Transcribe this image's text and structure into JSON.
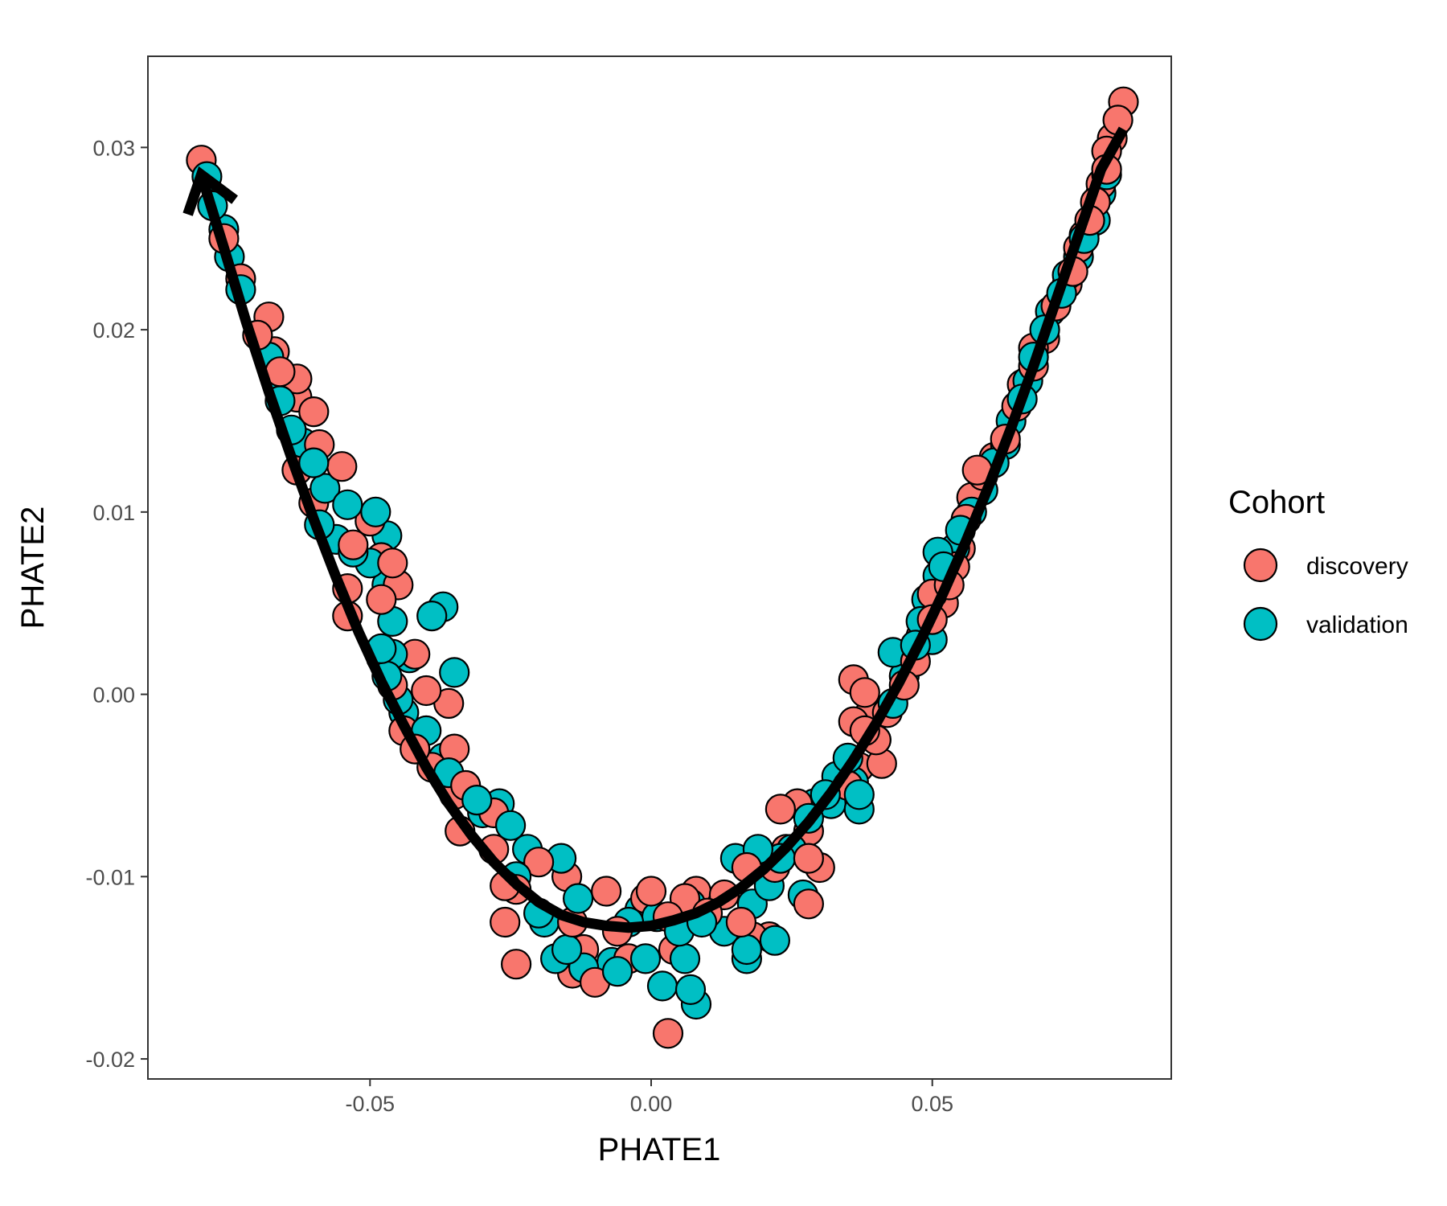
{
  "chart_data": {
    "type": "scatter",
    "xlabel": "PHATE1",
    "ylabel": "PHATE2",
    "xlim": [
      -0.0895,
      0.0925
    ],
    "ylim": [
      -0.0211,
      0.035
    ],
    "x_ticks": [
      -0.05,
      0.0,
      0.05
    ],
    "x_tick_labels": [
      "-0.05",
      "0.00",
      "0.05"
    ],
    "y_ticks": [
      -0.02,
      -0.01,
      0.0,
      0.01,
      0.02,
      0.03
    ],
    "y_tick_labels": [
      "-0.02",
      "-0.01",
      "0.00",
      "0.01",
      "0.02",
      "0.03"
    ],
    "grid": false,
    "legend": {
      "title": "Cohort",
      "placement": "right",
      "entries": [
        {
          "label": "discovery",
          "color": "#F8766D"
        },
        {
          "label": "validation",
          "color": "#00BFC4"
        }
      ]
    },
    "series": [
      {
        "name": "discovery",
        "color": "#F8766D",
        "points": [
          [
            -0.08,
            0.0293
          ],
          [
            -0.076,
            0.025
          ],
          [
            -0.073,
            0.0228
          ],
          [
            -0.07,
            0.0197
          ],
          [
            -0.068,
            0.0207
          ],
          [
            -0.067,
            0.0188
          ],
          [
            -0.066,
            0.0177
          ],
          [
            -0.063,
            0.0173
          ],
          [
            -0.063,
            0.0163
          ],
          [
            -0.06,
            0.0155
          ],
          [
            -0.059,
            0.0137
          ],
          [
            -0.063,
            0.0123
          ],
          [
            -0.055,
            0.0125
          ],
          [
            -0.06,
            0.0105
          ],
          [
            -0.053,
            0.0082
          ],
          [
            -0.05,
            0.0095
          ],
          [
            -0.048,
            0.0075
          ],
          [
            -0.046,
            0.0072
          ],
          [
            -0.045,
            0.006
          ],
          [
            -0.054,
            0.0058
          ],
          [
            -0.048,
            0.0052
          ],
          [
            -0.054,
            0.0043
          ],
          [
            -0.048,
            0.002
          ],
          [
            -0.046,
            0.0005
          ],
          [
            -0.042,
            0.0022
          ],
          [
            -0.04,
            0.0002
          ],
          [
            -0.036,
            -0.0005
          ],
          [
            -0.044,
            -0.002
          ],
          [
            -0.042,
            -0.003
          ],
          [
            -0.039,
            -0.004
          ],
          [
            -0.035,
            -0.003
          ],
          [
            -0.033,
            -0.005
          ],
          [
            -0.035,
            -0.0055
          ],
          [
            -0.034,
            -0.0075
          ],
          [
            -0.028,
            -0.0065
          ],
          [
            -0.028,
            -0.0085
          ],
          [
            -0.026,
            -0.0105
          ],
          [
            -0.024,
            -0.0107
          ],
          [
            -0.026,
            -0.0125
          ],
          [
            -0.024,
            -0.0148
          ],
          [
            -0.02,
            -0.0092
          ],
          [
            -0.015,
            -0.01
          ],
          [
            -0.014,
            -0.0125
          ],
          [
            -0.012,
            -0.014
          ],
          [
            -0.014,
            -0.0153
          ],
          [
            -0.01,
            -0.0158
          ],
          [
            -0.008,
            -0.0108
          ],
          [
            -0.006,
            -0.013
          ],
          [
            -0.004,
            -0.0145
          ],
          [
            -0.001,
            -0.0112
          ],
          [
            0.0,
            -0.0108
          ],
          [
            0.003,
            -0.0122
          ],
          [
            0.004,
            -0.014
          ],
          [
            0.003,
            -0.0186
          ],
          [
            0.006,
            -0.0112
          ],
          [
            0.008,
            -0.0108
          ],
          [
            0.01,
            -0.012
          ],
          [
            0.013,
            -0.011
          ],
          [
            0.016,
            -0.0125
          ],
          [
            0.018,
            -0.0133
          ],
          [
            0.021,
            -0.0133
          ],
          [
            0.017,
            -0.0095
          ],
          [
            0.022,
            -0.0095
          ],
          [
            0.024,
            -0.0085
          ],
          [
            0.023,
            -0.0063
          ],
          [
            0.026,
            -0.006
          ],
          [
            0.028,
            -0.0075
          ],
          [
            0.028,
            -0.009
          ],
          [
            0.03,
            -0.0095
          ],
          [
            0.028,
            -0.0115
          ],
          [
            0.035,
            -0.005
          ],
          [
            0.037,
            -0.004
          ],
          [
            0.038,
            -0.002
          ],
          [
            0.036,
            -0.0015
          ],
          [
            0.039,
            -0.001
          ],
          [
            0.04,
            -0.0025
          ],
          [
            0.042,
            -0.001
          ],
          [
            0.036,
            0.0008
          ],
          [
            0.038,
            0.0001
          ],
          [
            0.041,
            -0.0038
          ],
          [
            0.045,
            0.0005
          ],
          [
            0.047,
            0.0018
          ],
          [
            0.048,
            0.0032
          ],
          [
            0.05,
            0.0041
          ],
          [
            0.05,
            0.0055
          ],
          [
            0.052,
            0.005
          ],
          [
            0.053,
            0.006
          ],
          [
            0.054,
            0.007
          ],
          [
            0.055,
            0.008
          ],
          [
            0.056,
            0.0096
          ],
          [
            0.057,
            0.0108
          ],
          [
            0.058,
            0.0123
          ],
          [
            0.059,
            0.012
          ],
          [
            0.061,
            0.013
          ],
          [
            0.063,
            0.014
          ],
          [
            0.065,
            0.0158
          ],
          [
            0.066,
            0.017
          ],
          [
            0.068,
            0.018
          ],
          [
            0.068,
            0.019
          ],
          [
            0.07,
            0.0195
          ],
          [
            0.072,
            0.0213
          ],
          [
            0.074,
            0.0225
          ],
          [
            0.075,
            0.0232
          ],
          [
            0.076,
            0.0245
          ],
          [
            0.077,
            0.0252
          ],
          [
            0.078,
            0.026
          ],
          [
            0.079,
            0.027
          ],
          [
            0.08,
            0.028
          ],
          [
            0.081,
            0.0288
          ],
          [
            0.081,
            0.0298
          ],
          [
            0.082,
            0.0305
          ],
          [
            0.083,
            0.0315
          ],
          [
            0.084,
            0.0325
          ]
        ]
      },
      {
        "name": "validation",
        "color": "#00BFC4",
        "points": [
          [
            -0.079,
            0.0284
          ],
          [
            -0.078,
            0.0268
          ],
          [
            -0.076,
            0.0255
          ],
          [
            -0.075,
            0.024
          ],
          [
            -0.073,
            0.0222
          ],
          [
            -0.068,
            0.0185
          ],
          [
            -0.067,
            0.0175
          ],
          [
            -0.066,
            0.0161
          ],
          [
            -0.064,
            0.0145
          ],
          [
            -0.062,
            0.0138
          ],
          [
            -0.06,
            0.0127
          ],
          [
            -0.058,
            0.0113
          ],
          [
            -0.054,
            0.0104
          ],
          [
            -0.059,
            0.0093
          ],
          [
            -0.056,
            0.0085
          ],
          [
            -0.053,
            0.0078
          ],
          [
            -0.05,
            0.0072
          ],
          [
            -0.047,
            0.0087
          ],
          [
            -0.049,
            0.01
          ],
          [
            -0.047,
            0.006
          ],
          [
            -0.046,
            0.004
          ],
          [
            -0.039,
            0.0043
          ],
          [
            -0.037,
            0.0048
          ],
          [
            -0.048,
            0.0025
          ],
          [
            -0.046,
            0.0022
          ],
          [
            -0.043,
            0.002
          ],
          [
            -0.047,
            0.001
          ],
          [
            -0.045,
            -0.0003
          ],
          [
            -0.044,
            -0.001
          ],
          [
            -0.035,
            0.0012
          ],
          [
            -0.04,
            -0.002
          ],
          [
            -0.037,
            -0.0035
          ],
          [
            -0.036,
            -0.0043
          ],
          [
            -0.033,
            -0.005
          ],
          [
            -0.031,
            -0.0058
          ],
          [
            -0.03,
            -0.0065
          ],
          [
            -0.027,
            -0.006
          ],
          [
            -0.025,
            -0.0072
          ],
          [
            -0.024,
            -0.01
          ],
          [
            -0.022,
            -0.0085
          ],
          [
            -0.02,
            -0.012
          ],
          [
            -0.019,
            -0.0125
          ],
          [
            -0.017,
            -0.0145
          ],
          [
            -0.015,
            -0.014
          ],
          [
            -0.016,
            -0.009
          ],
          [
            -0.013,
            -0.0112
          ],
          [
            -0.012,
            -0.015
          ],
          [
            -0.007,
            -0.0147
          ],
          [
            -0.006,
            -0.0152
          ],
          [
            -0.004,
            -0.0125
          ],
          [
            -0.002,
            -0.0118
          ],
          [
            -0.001,
            -0.0145
          ],
          [
            0.001,
            -0.0122
          ],
          [
            0.002,
            -0.016
          ],
          [
            0.005,
            -0.013
          ],
          [
            0.006,
            -0.0145
          ],
          [
            0.007,
            -0.0162
          ],
          [
            0.008,
            -0.017
          ],
          [
            0.007,
            -0.0115
          ],
          [
            0.009,
            -0.0125
          ],
          [
            0.013,
            -0.013
          ],
          [
            0.015,
            -0.009
          ],
          [
            0.017,
            -0.014
          ],
          [
            0.017,
            -0.0145
          ],
          [
            0.018,
            -0.0115
          ],
          [
            0.019,
            -0.0085
          ],
          [
            0.021,
            -0.0105
          ],
          [
            0.022,
            -0.0135
          ],
          [
            0.023,
            -0.009
          ],
          [
            0.025,
            -0.0085
          ],
          [
            0.027,
            -0.011
          ],
          [
            0.028,
            -0.0068
          ],
          [
            0.029,
            -0.006
          ],
          [
            0.031,
            -0.0055
          ],
          [
            0.032,
            -0.006
          ],
          [
            0.033,
            -0.0045
          ],
          [
            0.035,
            -0.0035
          ],
          [
            0.036,
            -0.0048
          ],
          [
            0.037,
            -0.0055
          ],
          [
            0.037,
            -0.0063
          ],
          [
            0.04,
            -0.0025
          ],
          [
            0.043,
            -0.0005
          ],
          [
            0.043,
            0.0023
          ],
          [
            0.045,
            0.001
          ],
          [
            0.047,
            0.0027
          ],
          [
            0.048,
            0.004
          ],
          [
            0.049,
            0.0052
          ],
          [
            0.05,
            0.003
          ],
          [
            0.051,
            0.0065
          ],
          [
            0.052,
            0.007
          ],
          [
            0.051,
            0.0078
          ],
          [
            0.054,
            0.008
          ],
          [
            0.055,
            0.009
          ],
          [
            0.057,
            0.01
          ],
          [
            0.059,
            0.0112
          ],
          [
            0.061,
            0.0127
          ],
          [
            0.063,
            0.0137
          ],
          [
            0.064,
            0.015
          ],
          [
            0.066,
            0.0162
          ],
          [
            0.067,
            0.0172
          ],
          [
            0.068,
            0.0185
          ],
          [
            0.07,
            0.02
          ],
          [
            0.071,
            0.021
          ],
          [
            0.073,
            0.022
          ],
          [
            0.074,
            0.023
          ],
          [
            0.076,
            0.024
          ],
          [
            0.077,
            0.025
          ],
          [
            0.079,
            0.026
          ],
          [
            0.08,
            0.0275
          ],
          [
            0.081,
            0.0285
          ]
        ]
      }
    ],
    "trajectory": {
      "points": [
        [
          -0.08,
          0.0285
        ],
        [
          -0.076,
          0.0245
        ],
        [
          -0.072,
          0.0204
        ],
        [
          -0.068,
          0.0166
        ],
        [
          -0.064,
          0.013
        ],
        [
          -0.06,
          0.0096
        ],
        [
          -0.056,
          0.0064
        ],
        [
          -0.052,
          0.0034
        ],
        [
          -0.048,
          0.0007
        ],
        [
          -0.044,
          -0.0017
        ],
        [
          -0.04,
          -0.004
        ],
        [
          -0.036,
          -0.006
        ],
        [
          -0.032,
          -0.0077
        ],
        [
          -0.028,
          -0.0092
        ],
        [
          -0.024,
          -0.0104
        ],
        [
          -0.02,
          -0.0114
        ],
        [
          -0.016,
          -0.0121
        ],
        [
          -0.012,
          -0.0125
        ],
        [
          -0.008,
          -0.0127
        ],
        [
          -0.004,
          -0.0128
        ],
        [
          0.0,
          -0.0127
        ],
        [
          0.004,
          -0.0124
        ],
        [
          0.008,
          -0.012
        ],
        [
          0.012,
          -0.0114
        ],
        [
          0.016,
          -0.0106
        ],
        [
          0.02,
          -0.0096
        ],
        [
          0.024,
          -0.0084
        ],
        [
          0.028,
          -0.007
        ],
        [
          0.032,
          -0.0054
        ],
        [
          0.036,
          -0.0036
        ],
        [
          0.04,
          -0.0016
        ],
        [
          0.044,
          0.0006
        ],
        [
          0.048,
          0.003
        ],
        [
          0.052,
          0.0056
        ],
        [
          0.056,
          0.0084
        ],
        [
          0.06,
          0.0114
        ],
        [
          0.064,
          0.0146
        ],
        [
          0.068,
          0.018
        ],
        [
          0.072,
          0.0216
        ],
        [
          0.076,
          0.0252
        ],
        [
          0.08,
          0.0288
        ],
        [
          0.084,
          0.031
        ]
      ],
      "arrow": "start"
    }
  }
}
